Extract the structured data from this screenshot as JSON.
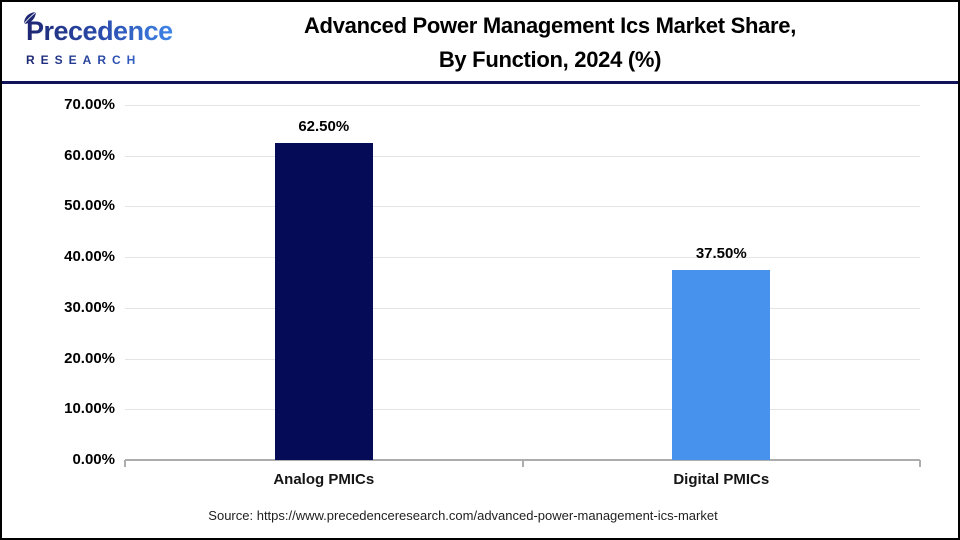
{
  "header": {
    "logo": {
      "name": "Precedence",
      "subname": "RESEARCH"
    },
    "title_line1": "Advanced Power Management Ics Market Share,",
    "title_line2": "By Function, 2024 (%)"
  },
  "chart_data": {
    "type": "bar",
    "title": "Advanced Power Management Ics Market Share, By Function, 2024 (%)",
    "categories": [
      "Analog PMICs",
      "Digital PMICs"
    ],
    "values": [
      62.5,
      37.5
    ],
    "value_labels": [
      "62.50%",
      "37.50%"
    ],
    "bar_colors": [
      "#050B56",
      "#4792EC"
    ],
    "ylim": [
      0,
      70
    ],
    "ytick_step": 10,
    "ytick_labels": [
      "0.00%",
      "10.00%",
      "20.00%",
      "30.00%",
      "40.00%",
      "50.00%",
      "60.00%",
      "70.00%"
    ],
    "grid": true,
    "legend": "none",
    "xlabel": "",
    "ylabel": ""
  },
  "footer": {
    "source": "Source: https://www.precedenceresearch.com/advanced-power-management-ics-market"
  },
  "colors": {
    "bar_analog": "#050B56",
    "bar_digital": "#4792EC",
    "header_rule": "#101357",
    "gridline": "#E4E4E4",
    "axis": "#ADADAD",
    "logo_navy": "#1E2772",
    "logo_blue": "#3F85E8"
  }
}
